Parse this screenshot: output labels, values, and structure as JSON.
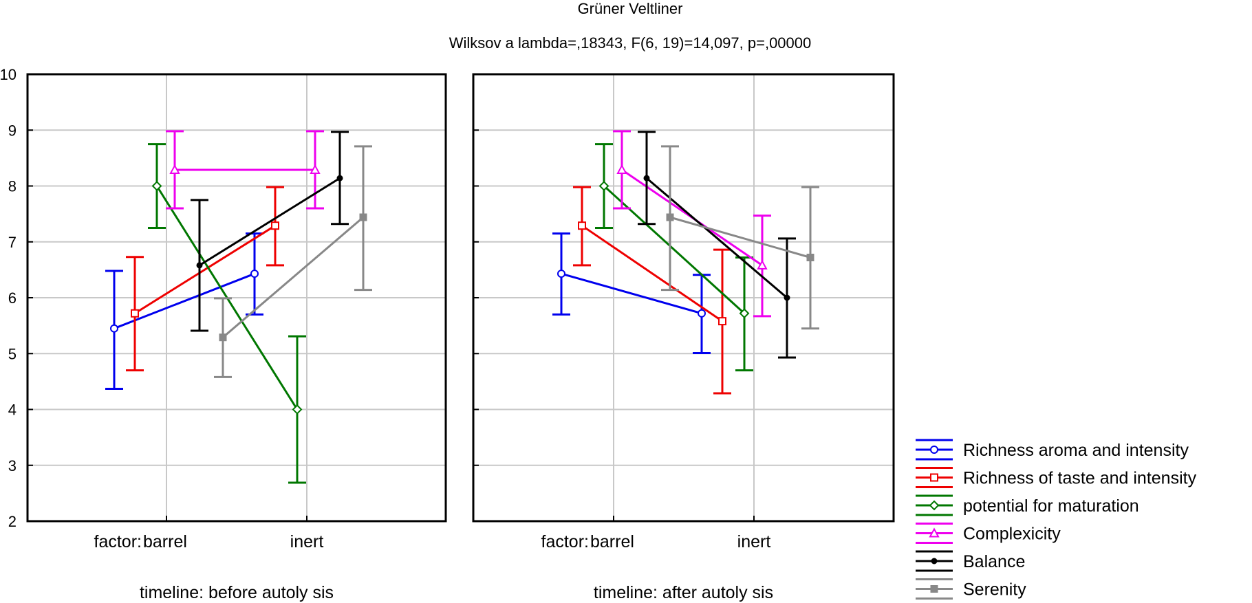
{
  "chart_data": {
    "type": "line",
    "title": "Grüner Veltliner",
    "subtitle": "Wilksov a lambda=,18343, F(6, 19)=14,097, p=,00000",
    "y_ticks": [
      "2",
      "3",
      "4",
      "5",
      "6",
      "7",
      "8",
      "9",
      "10"
    ],
    "ylim": [
      2,
      10
    ],
    "grid": true,
    "error_bars": true,
    "factor_label": "factor:",
    "categories": [
      "barrel",
      "inert"
    ],
    "legend_position": "bottom-right",
    "panels": [
      {
        "label": "timeline: before autoly sis",
        "series": [
          {
            "name": "Richness aroma and intensity",
            "color": "#0000ee",
            "marker": "circle",
            "values": [
              5.45,
              6.43
            ],
            "upper": [
              6.48,
              7.15
            ],
            "lower": [
              4.37,
              5.7
            ]
          },
          {
            "name": "Richness of taste and intensity",
            "color": "#ee0000",
            "marker": "square",
            "values": [
              5.72,
              7.29
            ],
            "upper": [
              6.73,
              7.98
            ],
            "lower": [
              4.7,
              6.58
            ]
          },
          {
            "name": "potential for maturation",
            "color": "#007700",
            "marker": "diamond",
            "values": [
              8.0,
              4.0
            ],
            "upper": [
              8.75,
              5.31
            ],
            "lower": [
              7.25,
              2.69
            ]
          },
          {
            "name": "Complexicity",
            "color": "#ee00ee",
            "marker": "triangle",
            "values": [
              8.29,
              8.29
            ],
            "upper": [
              8.98,
              8.98
            ],
            "lower": [
              7.6,
              7.6
            ]
          },
          {
            "name": "Balance",
            "color": "#000000",
            "marker": "dot",
            "values": [
              6.58,
              8.14
            ],
            "upper": [
              7.75,
              8.97
            ],
            "lower": [
              5.41,
              7.32
            ]
          },
          {
            "name": "Serenity",
            "color": "#888888",
            "marker": "filled-square",
            "values": [
              5.29,
              7.44
            ],
            "upper": [
              5.99,
              8.71
            ],
            "lower": [
              4.58,
              6.14
            ]
          }
        ]
      },
      {
        "label": "timeline: after autoly sis",
        "series": [
          {
            "name": "Richness aroma and intensity",
            "color": "#0000ee",
            "marker": "circle",
            "values": [
              6.43,
              5.72
            ],
            "upper": [
              7.15,
              6.41
            ],
            "lower": [
              5.7,
              5.01
            ]
          },
          {
            "name": "Richness of taste and intensity",
            "color": "#ee0000",
            "marker": "square",
            "values": [
              7.29,
              5.58
            ],
            "upper": [
              7.98,
              6.86
            ],
            "lower": [
              6.58,
              4.29
            ]
          },
          {
            "name": "potential for maturation",
            "color": "#007700",
            "marker": "diamond",
            "values": [
              8.0,
              5.72
            ],
            "upper": [
              8.75,
              6.72
            ],
            "lower": [
              7.25,
              4.7
            ]
          },
          {
            "name": "Complexicity",
            "color": "#ee00ee",
            "marker": "triangle",
            "values": [
              8.29,
              6.58
            ],
            "upper": [
              8.98,
              7.47
            ],
            "lower": [
              7.6,
              5.67
            ]
          },
          {
            "name": "Balance",
            "color": "#000000",
            "marker": "dot",
            "values": [
              8.14,
              6.0
            ],
            "upper": [
              8.97,
              7.06
            ],
            "lower": [
              7.32,
              4.93
            ]
          },
          {
            "name": "Serenity",
            "color": "#888888",
            "marker": "filled-square",
            "values": [
              7.44,
              6.72
            ],
            "upper": [
              8.71,
              7.98
            ],
            "lower": [
              6.14,
              5.45
            ]
          }
        ]
      }
    ]
  }
}
